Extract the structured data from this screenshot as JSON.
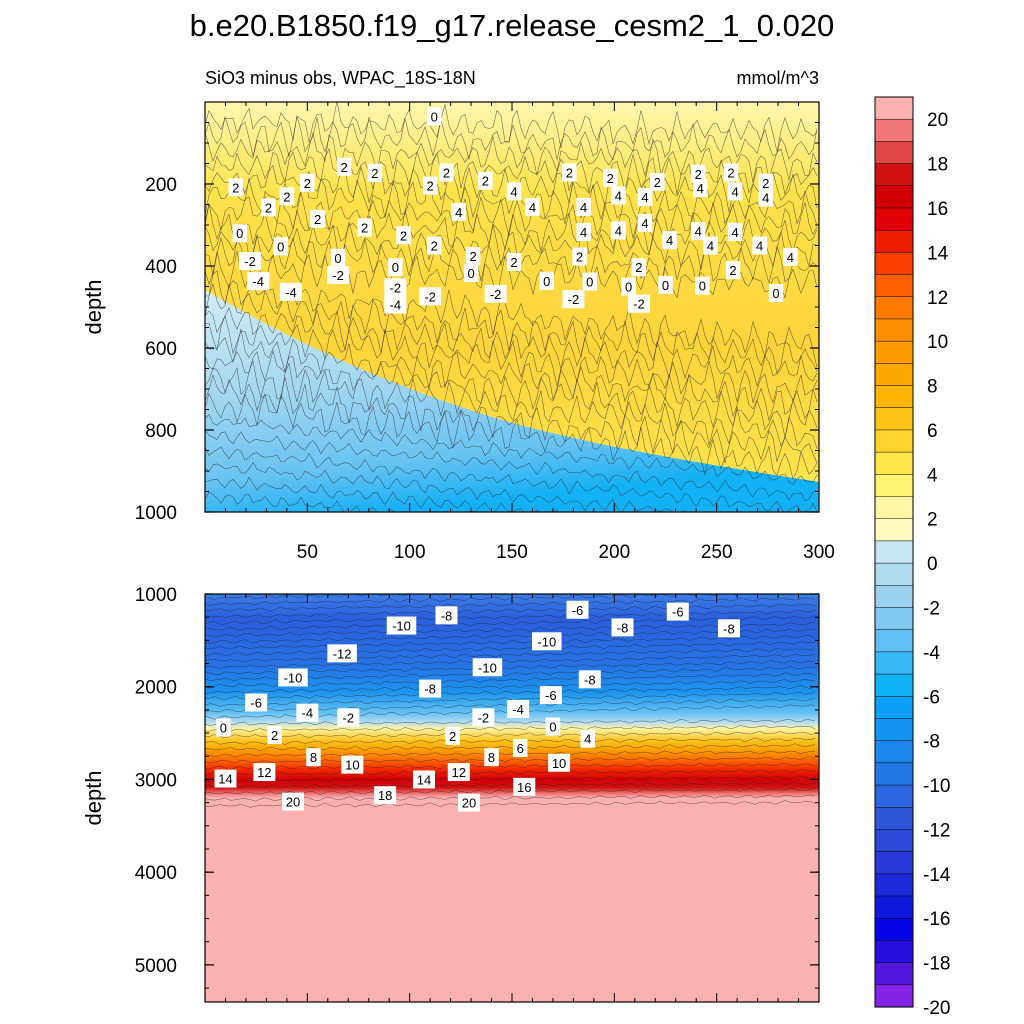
{
  "chart_data": {
    "type": "heatmap",
    "title": "b.e20.B1850.f19_g17.release_cesm2_1_0.020",
    "subtitle": "SiO3 minus obs, WPAC_18S-18N",
    "units": "mmol/m^3",
    "ylabel": "depth",
    "panels": [
      {
        "name": "upper",
        "ylim": [
          1000,
          0
        ],
        "xlim": [
          0,
          300
        ],
        "y_ticks": [
          "200",
          "400",
          "600",
          "800",
          "1000"
        ],
        "x_ticks": [
          "50",
          "100",
          "150",
          "200",
          "250",
          "300"
        ],
        "contour_labels": [
          {
            "text": "0",
            "x": 112,
            "y": 35
          },
          {
            "text": "2",
            "x": 68,
            "y": 158
          },
          {
            "text": "2",
            "x": 83,
            "y": 173
          },
          {
            "text": "2",
            "x": 118,
            "y": 172
          },
          {
            "text": "2",
            "x": 137,
            "y": 192
          },
          {
            "text": "2",
            "x": 178,
            "y": 172
          },
          {
            "text": "2",
            "x": 198,
            "y": 185
          },
          {
            "text": "2",
            "x": 241,
            "y": 175
          },
          {
            "text": "2",
            "x": 257,
            "y": 172
          },
          {
            "text": "2",
            "x": 15,
            "y": 208
          },
          {
            "text": "2",
            "x": 50,
            "y": 197
          },
          {
            "text": "2",
            "x": 110,
            "y": 204
          },
          {
            "text": "2",
            "x": 221,
            "y": 195
          },
          {
            "text": "2",
            "x": 274,
            "y": 197
          },
          {
            "text": "2",
            "x": 40,
            "y": 230
          },
          {
            "text": "2",
            "x": 31,
            "y": 257
          },
          {
            "text": "2",
            "x": 55,
            "y": 285
          },
          {
            "text": "2",
            "x": 78,
            "y": 306
          },
          {
            "text": "2",
            "x": 97,
            "y": 325
          },
          {
            "text": "2",
            "x": 112,
            "y": 350
          },
          {
            "text": "2",
            "x": 131,
            "y": 376
          },
          {
            "text": "2",
            "x": 151,
            "y": 390
          },
          {
            "text": "2",
            "x": 183,
            "y": 377
          },
          {
            "text": "2",
            "x": 212,
            "y": 403
          },
          {
            "text": "2",
            "x": 258,
            "y": 410
          },
          {
            "text": "4",
            "x": 151,
            "y": 218
          },
          {
            "text": "4",
            "x": 202,
            "y": 228
          },
          {
            "text": "4",
            "x": 215,
            "y": 232
          },
          {
            "text": "4",
            "x": 242,
            "y": 210
          },
          {
            "text": "4",
            "x": 259,
            "y": 218
          },
          {
            "text": "4",
            "x": 274,
            "y": 233
          },
          {
            "text": "4",
            "x": 124,
            "y": 268
          },
          {
            "text": "4",
            "x": 160,
            "y": 256
          },
          {
            "text": "4",
            "x": 185,
            "y": 256
          },
          {
            "text": "4",
            "x": 215,
            "y": 295
          },
          {
            "text": "4",
            "x": 185,
            "y": 317
          },
          {
            "text": "4",
            "x": 202,
            "y": 313
          },
          {
            "text": "4",
            "x": 227,
            "y": 337
          },
          {
            "text": "4",
            "x": 241,
            "y": 315
          },
          {
            "text": "4",
            "x": 259,
            "y": 317
          },
          {
            "text": "4",
            "x": 247,
            "y": 350
          },
          {
            "text": "4",
            "x": 271,
            "y": 350
          },
          {
            "text": "4",
            "x": 286,
            "y": 378
          },
          {
            "text": "0",
            "x": 17,
            "y": 320
          },
          {
            "text": "0",
            "x": 37,
            "y": 352
          },
          {
            "text": "0",
            "x": 65,
            "y": 380
          },
          {
            "text": "0",
            "x": 93,
            "y": 403
          },
          {
            "text": "0",
            "x": 130,
            "y": 417
          },
          {
            "text": "0",
            "x": 167,
            "y": 436
          },
          {
            "text": "0",
            "x": 188,
            "y": 438
          },
          {
            "text": "0",
            "x": 207,
            "y": 450
          },
          {
            "text": "0",
            "x": 225,
            "y": 446
          },
          {
            "text": "0",
            "x": 243,
            "y": 448
          },
          {
            "text": "0",
            "x": 279,
            "y": 466
          },
          {
            "text": "-2",
            "x": 22,
            "y": 388
          },
          {
            "text": "-2",
            "x": 65,
            "y": 422
          },
          {
            "text": "-2",
            "x": 93,
            "y": 452
          },
          {
            "text": "-2",
            "x": 110,
            "y": 474
          },
          {
            "text": "-2",
            "x": 142,
            "y": 468
          },
          {
            "text": "-2",
            "x": 180,
            "y": 481
          },
          {
            "text": "-2",
            "x": 212,
            "y": 492
          },
          {
            "text": "-4",
            "x": 26,
            "y": 437
          },
          {
            "text": "-4",
            "x": 42,
            "y": 463
          },
          {
            "text": "-4",
            "x": 93,
            "y": 494
          }
        ]
      },
      {
        "name": "lower",
        "ylim": [
          5400,
          1000
        ],
        "xlim": [
          0,
          300
        ],
        "y_ticks": [
          "1000",
          "2000",
          "3000",
          "4000",
          "5000"
        ],
        "contour_labels": [
          {
            "text": "-10",
            "x": 96,
            "y": 1340
          },
          {
            "text": "-8",
            "x": 118,
            "y": 1230
          },
          {
            "text": "-6",
            "x": 182,
            "y": 1170
          },
          {
            "text": "-8",
            "x": 204,
            "y": 1360
          },
          {
            "text": "-6",
            "x": 231,
            "y": 1190
          },
          {
            "text": "-8",
            "x": 256,
            "y": 1370
          },
          {
            "text": "-12",
            "x": 67,
            "y": 1640
          },
          {
            "text": "-10",
            "x": 167,
            "y": 1510
          },
          {
            "text": "-10",
            "x": 138,
            "y": 1790
          },
          {
            "text": "-10",
            "x": 43,
            "y": 1900
          },
          {
            "text": "-8",
            "x": 110,
            "y": 2020
          },
          {
            "text": "-8",
            "x": 188,
            "y": 1920
          },
          {
            "text": "-6",
            "x": 25,
            "y": 2170
          },
          {
            "text": "-6",
            "x": 169,
            "y": 2090
          },
          {
            "text": "-4",
            "x": 50,
            "y": 2280
          },
          {
            "text": "-4",
            "x": 153,
            "y": 2240
          },
          {
            "text": "-2",
            "x": 70,
            "y": 2330
          },
          {
            "text": "-2",
            "x": 136,
            "y": 2330
          },
          {
            "text": "0",
            "x": 9,
            "y": 2440
          },
          {
            "text": "0",
            "x": 170,
            "y": 2430
          },
          {
            "text": "2",
            "x": 34,
            "y": 2520
          },
          {
            "text": "2",
            "x": 121,
            "y": 2530
          },
          {
            "text": "4",
            "x": 187,
            "y": 2560
          },
          {
            "text": "6",
            "x": 154,
            "y": 2660
          },
          {
            "text": "8",
            "x": 53,
            "y": 2760
          },
          {
            "text": "8",
            "x": 140,
            "y": 2760
          },
          {
            "text": "10",
            "x": 72,
            "y": 2840
          },
          {
            "text": "10",
            "x": 173,
            "y": 2820
          },
          {
            "text": "12",
            "x": 29,
            "y": 2920
          },
          {
            "text": "12",
            "x": 124,
            "y": 2920
          },
          {
            "text": "14",
            "x": 10,
            "y": 2990
          },
          {
            "text": "14",
            "x": 107,
            "y": 3000
          },
          {
            "text": "16",
            "x": 156,
            "y": 3080
          },
          {
            "text": "18",
            "x": 88,
            "y": 3170
          },
          {
            "text": "20",
            "x": 43,
            "y": 3240
          },
          {
            "text": "20",
            "x": 129,
            "y": 3250
          }
        ]
      }
    ],
    "colorbar": {
      "labels": [
        "20",
        "18",
        "16",
        "14",
        "12",
        "10",
        "8",
        "6",
        "4",
        "2",
        "0",
        "-2",
        "-4",
        "-6",
        "-8",
        "-10",
        "-12",
        "-14",
        "-16",
        "-18",
        "-20"
      ],
      "colors": [
        "#fcb1b1",
        "#f07878",
        "#e04646",
        "#d01212",
        "#d10006",
        "#e10007",
        "#ee1c00",
        "#fb4000",
        "#ff5d00",
        "#ff7900",
        "#fc8f00",
        "#fb9b00",
        "#fca700",
        "#fcb500",
        "#fdc518",
        "#fed42c",
        "#fee649",
        "#fff572",
        "#fff6a3",
        "#fff9c1",
        "#c6e6f5",
        "#afdbf0",
        "#9bd1ee",
        "#80c9f0",
        "#60c0f3",
        "#36b6f6",
        "#0fb2f6",
        "#0ba0f3",
        "#1396f0",
        "#1d87ec",
        "#2577e6",
        "#2c66e0",
        "#2f56da",
        "#2d47d6",
        "#2839d8",
        "#1d2ad8",
        "#0e18dd",
        "#0505e8",
        "#2a10e0",
        "#5516e0",
        "#8424e6"
      ]
    }
  }
}
